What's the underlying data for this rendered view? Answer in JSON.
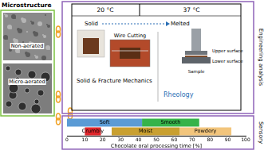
{
  "diagram": {
    "microstructure": {
      "title": "Microstructure",
      "images": [
        "Non-aerated",
        "Micro-aerated"
      ]
    },
    "engineering": {
      "title": "Engineering analysis",
      "temperatures": [
        "20 °C",
        "37 °C"
      ],
      "states": [
        "Solid",
        "Melted"
      ],
      "solid_photo_label": "Wire Cutting",
      "solid_method": "Solid & Fracture Mechanics",
      "rheometer_labels": [
        "Upper surface",
        "Lower surface",
        "Sample"
      ],
      "melted_method": "Rheology"
    },
    "sensory": {
      "title": "Sensory"
    }
  },
  "chart_data": {
    "type": "bar",
    "orientation": "horizontal",
    "x_label": "Chocolate oral processing time [%]",
    "xlim": [
      0,
      100
    ],
    "xticks": [
      0,
      10,
      20,
      30,
      40,
      50,
      60,
      70,
      80,
      90,
      100
    ],
    "grid": false,
    "tick_labels": "x",
    "rows": [
      [
        {
          "label": "Soft",
          "range": [
            0,
            42
          ],
          "color": "#5b9bd5"
        },
        {
          "label": "Smooth",
          "range": [
            42,
            74
          ],
          "color": "#35b34a"
        }
      ],
      [
        {
          "label": "Crumbly",
          "range": [
            10,
            19
          ],
          "color": "#e0262b"
        },
        {
          "label": "Moist",
          "range": [
            25,
            63
          ],
          "color": "#c9a030"
        },
        {
          "label": "Powdery",
          "range": [
            63,
            92
          ],
          "color": "#f2c57c"
        }
      ]
    ]
  }
}
